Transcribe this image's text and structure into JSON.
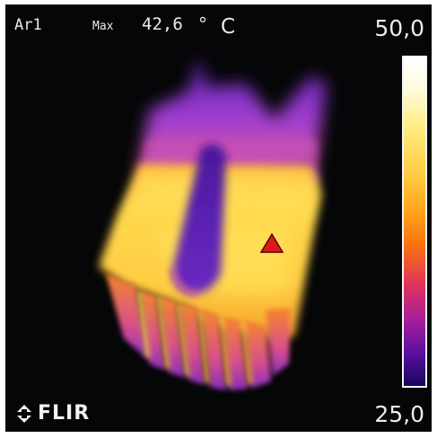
{
  "hud": {
    "area": "Ar1",
    "max_label": "Max",
    "max_value": "42,6",
    "unit_degree": "°",
    "unit_letter": "C"
  },
  "scale": {
    "max": "50,0",
    "min": "25,0",
    "palette": "iron"
  },
  "marker": {
    "icon": "hotspot-triangle-icon",
    "color": "#e01818"
  },
  "brand": {
    "name": "FLIR",
    "icon": "flir-logo-icon"
  },
  "colors": {
    "background": "#050607",
    "hot": "#ffd040",
    "mid": "#f0701a",
    "cool": "#8b2ec8"
  }
}
